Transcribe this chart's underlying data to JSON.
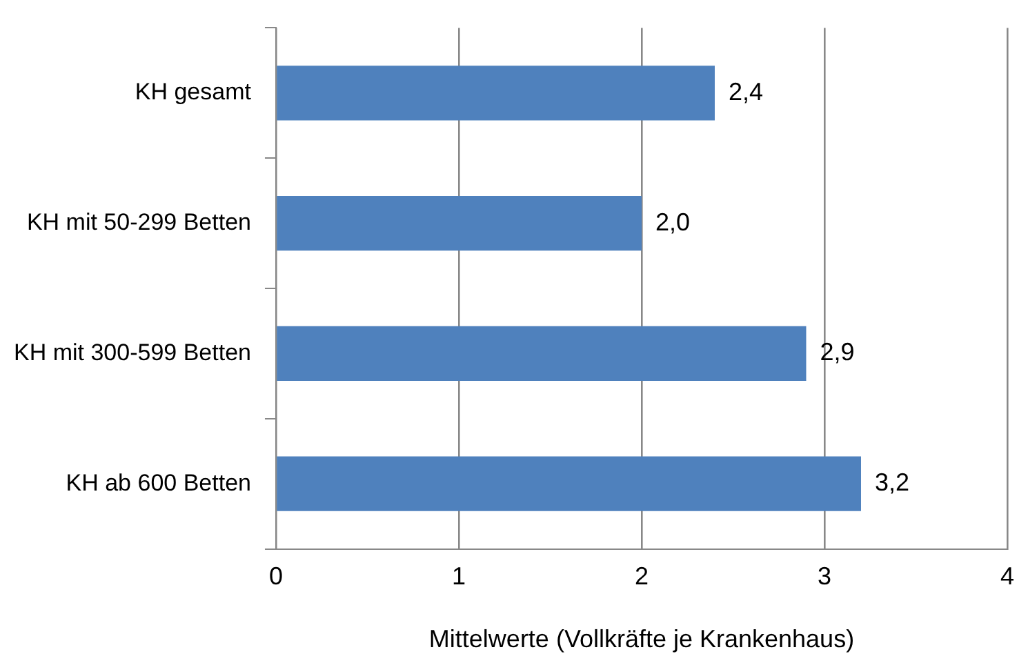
{
  "chart_data": {
    "type": "bar",
    "orientation": "horizontal",
    "xlabel": "Mittelwerte (Vollkräfte je Krankenhaus)",
    "categories": [
      "KH gesamt",
      "KH mit 50-299 Betten",
      "KH mit 300-599 Betten",
      "KH ab 600 Betten"
    ],
    "values": [
      2.4,
      2.0,
      2.9,
      3.2
    ],
    "color": "#4f81bd",
    "value_labels": [
      "2,4",
      "2,0",
      "2,9",
      "3,2"
    ],
    "xlim": [
      0,
      4
    ],
    "xticks": [
      0,
      1,
      2,
      3,
      4
    ],
    "grid": "x",
    "legend": false
  }
}
